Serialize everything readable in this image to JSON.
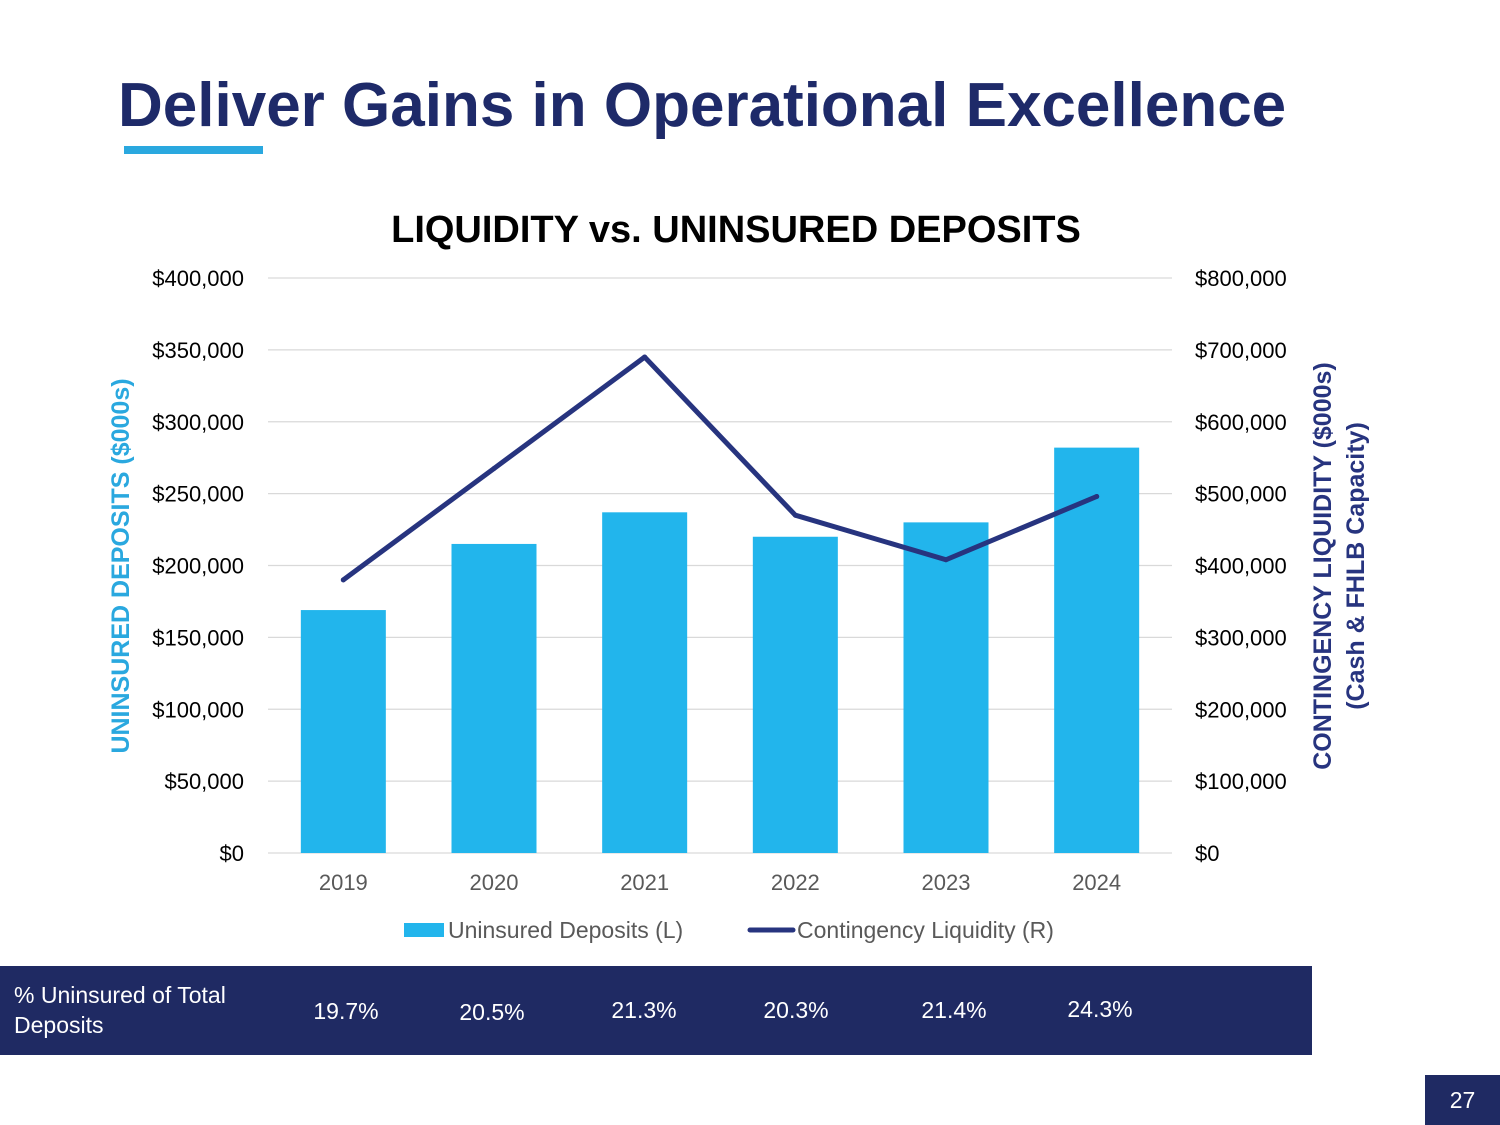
{
  "page": {
    "title": "Deliver Gains in Operational Excellence",
    "page_number": "27"
  },
  "colors": {
    "title": "#1e2a69",
    "accent": "#2aa8df",
    "bar": "#22b5ec",
    "line": "#27347f",
    "left_axis_label": "#2aa8df",
    "right_axis_label": "#27347f",
    "table_bg": "#1f2a63",
    "grid": "#d9d9d9"
  },
  "chart_data": {
    "type": "bar",
    "title": "LIQUIDITY vs. UNINSURED DEPOSITS",
    "categories": [
      "2019",
      "2020",
      "2021",
      "2022",
      "2023",
      "2024"
    ],
    "series": [
      {
        "name": "Uninsured Deposits (L)",
        "type": "bar",
        "axis": "left",
        "values": [
          169000,
          215000,
          237000,
          220000,
          230000,
          282000
        ]
      },
      {
        "name": "Contingency Liquidity (R)",
        "type": "line",
        "axis": "right",
        "values": [
          380000,
          535000,
          690000,
          470000,
          408000,
          496000
        ]
      }
    ],
    "ylabel": "UNINSURED DEPOSITS ($000s)",
    "y2label_line1": "CONTINGENCY LIQUIDITY ($000s)",
    "y2label_line2": "(Cash & FHLB Capacity)",
    "ylim": [
      0,
      400000
    ],
    "y2lim": [
      0,
      800000
    ],
    "yticks": [
      "$0",
      "$50,000",
      "$100,000",
      "$150,000",
      "$200,000",
      "$250,000",
      "$300,000",
      "$350,000",
      "$400,000"
    ],
    "y2ticks": [
      "$0",
      "$100,000",
      "$200,000",
      "$300,000",
      "$400,000",
      "$500,000",
      "$600,000",
      "$700,000",
      "$800,000"
    ],
    "grid": true,
    "legend": "bottom"
  },
  "percent_table": {
    "label": "% Uninsured of Total Deposits",
    "values": [
      "19.7%",
      "20.5%",
      "21.3%",
      "20.3%",
      "21.4%",
      "24.3%"
    ]
  }
}
